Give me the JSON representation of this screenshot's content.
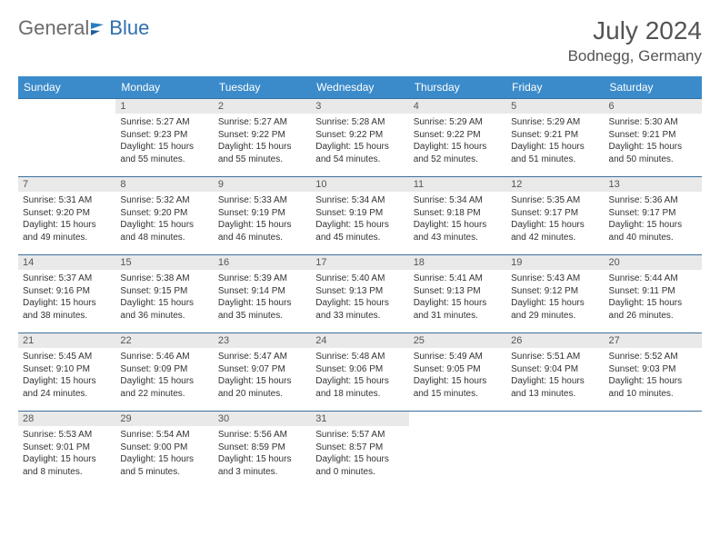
{
  "logo": {
    "part1": "General",
    "part2": "Blue"
  },
  "title": "July 2024",
  "location": "Bodnegg, Germany",
  "colors": {
    "header_bg": "#3b8bca",
    "header_text": "#ffffff",
    "daynum_bg": "#e9e9e9",
    "border": "#3b6f9e",
    "title_text": "#545454",
    "logo_gray": "#6b6b6b",
    "logo_blue": "#2f6fb0"
  },
  "weekdays": [
    "Sunday",
    "Monday",
    "Tuesday",
    "Wednesday",
    "Thursday",
    "Friday",
    "Saturday"
  ],
  "weeks": [
    [
      {
        "empty": true
      },
      {
        "n": "1",
        "sr": "Sunrise: 5:27 AM",
        "ss": "Sunset: 9:23 PM",
        "d1": "Daylight: 15 hours",
        "d2": "and 55 minutes."
      },
      {
        "n": "2",
        "sr": "Sunrise: 5:27 AM",
        "ss": "Sunset: 9:22 PM",
        "d1": "Daylight: 15 hours",
        "d2": "and 55 minutes."
      },
      {
        "n": "3",
        "sr": "Sunrise: 5:28 AM",
        "ss": "Sunset: 9:22 PM",
        "d1": "Daylight: 15 hours",
        "d2": "and 54 minutes."
      },
      {
        "n": "4",
        "sr": "Sunrise: 5:29 AM",
        "ss": "Sunset: 9:22 PM",
        "d1": "Daylight: 15 hours",
        "d2": "and 52 minutes."
      },
      {
        "n": "5",
        "sr": "Sunrise: 5:29 AM",
        "ss": "Sunset: 9:21 PM",
        "d1": "Daylight: 15 hours",
        "d2": "and 51 minutes."
      },
      {
        "n": "6",
        "sr": "Sunrise: 5:30 AM",
        "ss": "Sunset: 9:21 PM",
        "d1": "Daylight: 15 hours",
        "d2": "and 50 minutes."
      }
    ],
    [
      {
        "n": "7",
        "sr": "Sunrise: 5:31 AM",
        "ss": "Sunset: 9:20 PM",
        "d1": "Daylight: 15 hours",
        "d2": "and 49 minutes."
      },
      {
        "n": "8",
        "sr": "Sunrise: 5:32 AM",
        "ss": "Sunset: 9:20 PM",
        "d1": "Daylight: 15 hours",
        "d2": "and 48 minutes."
      },
      {
        "n": "9",
        "sr": "Sunrise: 5:33 AM",
        "ss": "Sunset: 9:19 PM",
        "d1": "Daylight: 15 hours",
        "d2": "and 46 minutes."
      },
      {
        "n": "10",
        "sr": "Sunrise: 5:34 AM",
        "ss": "Sunset: 9:19 PM",
        "d1": "Daylight: 15 hours",
        "d2": "and 45 minutes."
      },
      {
        "n": "11",
        "sr": "Sunrise: 5:34 AM",
        "ss": "Sunset: 9:18 PM",
        "d1": "Daylight: 15 hours",
        "d2": "and 43 minutes."
      },
      {
        "n": "12",
        "sr": "Sunrise: 5:35 AM",
        "ss": "Sunset: 9:17 PM",
        "d1": "Daylight: 15 hours",
        "d2": "and 42 minutes."
      },
      {
        "n": "13",
        "sr": "Sunrise: 5:36 AM",
        "ss": "Sunset: 9:17 PM",
        "d1": "Daylight: 15 hours",
        "d2": "and 40 minutes."
      }
    ],
    [
      {
        "n": "14",
        "sr": "Sunrise: 5:37 AM",
        "ss": "Sunset: 9:16 PM",
        "d1": "Daylight: 15 hours",
        "d2": "and 38 minutes."
      },
      {
        "n": "15",
        "sr": "Sunrise: 5:38 AM",
        "ss": "Sunset: 9:15 PM",
        "d1": "Daylight: 15 hours",
        "d2": "and 36 minutes."
      },
      {
        "n": "16",
        "sr": "Sunrise: 5:39 AM",
        "ss": "Sunset: 9:14 PM",
        "d1": "Daylight: 15 hours",
        "d2": "and 35 minutes."
      },
      {
        "n": "17",
        "sr": "Sunrise: 5:40 AM",
        "ss": "Sunset: 9:13 PM",
        "d1": "Daylight: 15 hours",
        "d2": "and 33 minutes."
      },
      {
        "n": "18",
        "sr": "Sunrise: 5:41 AM",
        "ss": "Sunset: 9:13 PM",
        "d1": "Daylight: 15 hours",
        "d2": "and 31 minutes."
      },
      {
        "n": "19",
        "sr": "Sunrise: 5:43 AM",
        "ss": "Sunset: 9:12 PM",
        "d1": "Daylight: 15 hours",
        "d2": "and 29 minutes."
      },
      {
        "n": "20",
        "sr": "Sunrise: 5:44 AM",
        "ss": "Sunset: 9:11 PM",
        "d1": "Daylight: 15 hours",
        "d2": "and 26 minutes."
      }
    ],
    [
      {
        "n": "21",
        "sr": "Sunrise: 5:45 AM",
        "ss": "Sunset: 9:10 PM",
        "d1": "Daylight: 15 hours",
        "d2": "and 24 minutes."
      },
      {
        "n": "22",
        "sr": "Sunrise: 5:46 AM",
        "ss": "Sunset: 9:09 PM",
        "d1": "Daylight: 15 hours",
        "d2": "and 22 minutes."
      },
      {
        "n": "23",
        "sr": "Sunrise: 5:47 AM",
        "ss": "Sunset: 9:07 PM",
        "d1": "Daylight: 15 hours",
        "d2": "and 20 minutes."
      },
      {
        "n": "24",
        "sr": "Sunrise: 5:48 AM",
        "ss": "Sunset: 9:06 PM",
        "d1": "Daylight: 15 hours",
        "d2": "and 18 minutes."
      },
      {
        "n": "25",
        "sr": "Sunrise: 5:49 AM",
        "ss": "Sunset: 9:05 PM",
        "d1": "Daylight: 15 hours",
        "d2": "and 15 minutes."
      },
      {
        "n": "26",
        "sr": "Sunrise: 5:51 AM",
        "ss": "Sunset: 9:04 PM",
        "d1": "Daylight: 15 hours",
        "d2": "and 13 minutes."
      },
      {
        "n": "27",
        "sr": "Sunrise: 5:52 AM",
        "ss": "Sunset: 9:03 PM",
        "d1": "Daylight: 15 hours",
        "d2": "and 10 minutes."
      }
    ],
    [
      {
        "n": "28",
        "sr": "Sunrise: 5:53 AM",
        "ss": "Sunset: 9:01 PM",
        "d1": "Daylight: 15 hours",
        "d2": "and 8 minutes."
      },
      {
        "n": "29",
        "sr": "Sunrise: 5:54 AM",
        "ss": "Sunset: 9:00 PM",
        "d1": "Daylight: 15 hours",
        "d2": "and 5 minutes."
      },
      {
        "n": "30",
        "sr": "Sunrise: 5:56 AM",
        "ss": "Sunset: 8:59 PM",
        "d1": "Daylight: 15 hours",
        "d2": "and 3 minutes."
      },
      {
        "n": "31",
        "sr": "Sunrise: 5:57 AM",
        "ss": "Sunset: 8:57 PM",
        "d1": "Daylight: 15 hours",
        "d2": "and 0 minutes."
      },
      {
        "empty": true
      },
      {
        "empty": true
      },
      {
        "empty": true
      }
    ]
  ]
}
